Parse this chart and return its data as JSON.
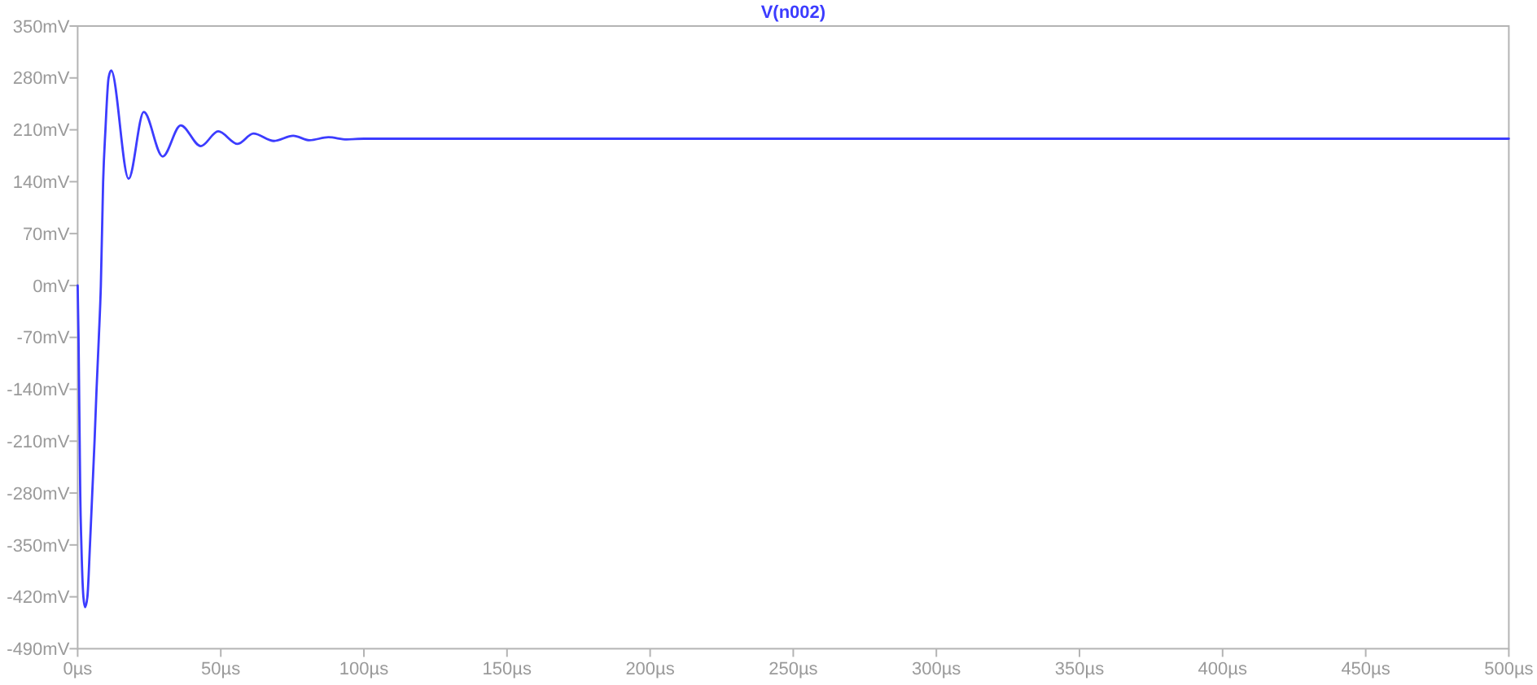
{
  "chart_data": {
    "type": "line",
    "x": [
      0,
      0.3,
      0.5,
      0.7,
      0.9,
      1.3,
      2.0,
      2.6,
      3.4,
      4.3,
      5.1,
      5.9,
      6.6,
      7.4,
      8.1,
      8.9,
      9.7,
      10.8,
      11.7,
      17.8,
      23.1,
      29.7,
      36,
      43,
      49.1,
      55.9,
      61.4,
      68.6,
      75.3,
      81,
      87.6,
      94,
      100,
      500
    ],
    "series": [
      {
        "name": "V(n002)",
        "color": "#3c3cff",
        "values": [
          0,
          -70,
          -140,
          -210,
          -280,
          -350,
          -420,
          -434,
          -420,
          -350,
          -280,
          -210,
          -140,
          -70,
          0,
          140,
          210,
          280,
          290,
          144,
          234,
          174,
          216,
          188,
          208,
          191,
          205,
          195,
          202,
          196,
          200,
          197,
          198,
          198
        ]
      }
    ],
    "xlim": [
      0,
      500
    ],
    "ylim": [
      -490,
      350
    ],
    "xticks": [
      {
        "value": 0,
        "label": "0µs"
      },
      {
        "value": 50,
        "label": "50µs"
      },
      {
        "value": 100,
        "label": "100µs"
      },
      {
        "value": 150,
        "label": "150µs"
      },
      {
        "value": 200,
        "label": "200µs"
      },
      {
        "value": 250,
        "label": "250µs"
      },
      {
        "value": 300,
        "label": "300µs"
      },
      {
        "value": 350,
        "label": "350µs"
      },
      {
        "value": 400,
        "label": "400µs"
      },
      {
        "value": 450,
        "label": "450µs"
      },
      {
        "value": 500,
        "label": "500µs"
      }
    ],
    "yticks": [
      {
        "value": 350,
        "label": "350mV"
      },
      {
        "value": 280,
        "label": "280mV"
      },
      {
        "value": 210,
        "label": "210mV"
      },
      {
        "value": 140,
        "label": "140mV"
      },
      {
        "value": 70,
        "label": "70mV"
      },
      {
        "value": 0,
        "label": "0mV"
      },
      {
        "value": -70,
        "label": "-70mV"
      },
      {
        "value": -140,
        "label": "-140mV"
      },
      {
        "value": -210,
        "label": "-210mV"
      },
      {
        "value": -280,
        "label": "-280mV"
      },
      {
        "value": -350,
        "label": "-350mV"
      },
      {
        "value": -420,
        "label": "-420mV"
      },
      {
        "value": -490,
        "label": "-490mV"
      }
    ],
    "legend": "top"
  }
}
